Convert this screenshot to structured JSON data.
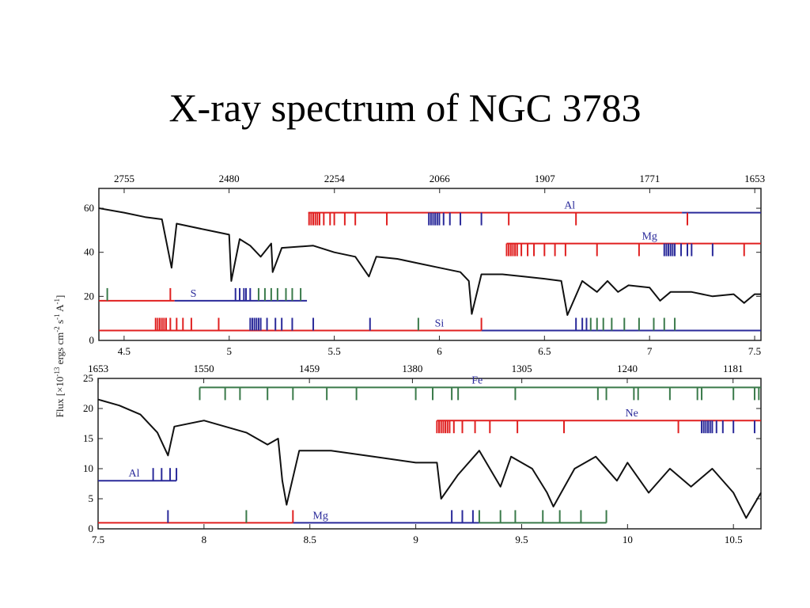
{
  "title": "X-ray spectrum of NGC 3783",
  "y_label": [
    "Flux [×10",
    "-13",
    " ergs cm",
    "-2",
    " s",
    "-1",
    " A",
    "-1",
    "]"
  ],
  "chart_data": [
    {
      "type": "line",
      "xlim": [
        4.38,
        7.53
      ],
      "xticks": [
        4.5,
        5,
        5.5,
        6,
        6.5,
        7,
        7.5
      ],
      "x2_scale": "reciprocal",
      "x2ticks": [
        2755,
        2480,
        2254,
        2066,
        1907,
        1771,
        1653
      ],
      "ylim": [
        0,
        69
      ],
      "yticks": [
        0,
        20,
        40,
        60
      ],
      "series": [
        {
          "color": "#111111",
          "x": [
            4.38,
            4.5,
            4.6,
            4.68,
            4.726,
            4.75,
            4.9,
            5.0,
            5.01,
            5.05,
            5.1,
            5.15,
            5.2,
            5.207,
            5.25,
            5.4,
            5.5,
            5.6,
            5.665,
            5.7,
            5.8,
            5.9,
            6.0,
            6.1,
            6.14,
            6.154,
            6.2,
            6.3,
            6.4,
            6.5,
            6.58,
            6.609,
            6.68,
            6.75,
            6.8,
            6.85,
            6.9,
            7.0,
            7.05,
            7.1,
            7.2,
            7.3,
            7.4,
            7.45,
            7.5,
            7.53
          ],
          "values": [
            60,
            58,
            56,
            55,
            33,
            53,
            50,
            48,
            27,
            46,
            43,
            38,
            44,
            31,
            42,
            43,
            40,
            38,
            29,
            38,
            37,
            35,
            33,
            31,
            27,
            12,
            30,
            30,
            29,
            28,
            27,
            11.5,
            27,
            22,
            27,
            22,
            25,
            24,
            18,
            22,
            22,
            20,
            21,
            17,
            21,
            21
          ]
        }
      ],
      "ions": [
        {
          "name": "Al",
          "level": 58,
          "tick_direction": "down",
          "segments": [
            {
              "color": "#e02020",
              "range": [
                5.376,
                7.154
              ]
            },
            {
              "color": "#2a2a9a",
              "range": [
                7.154,
                7.53
              ]
            }
          ],
          "ticks": [
            {
              "color": "#e02020",
              "x": [
                5.38,
                5.39,
                5.4,
                5.41,
                5.42,
                5.43,
                5.45,
                5.48,
                5.5,
                5.55,
                5.6,
                5.75,
                6.33,
                6.65,
                7.18
              ]
            },
            {
              "color": "#2a2a9a",
              "x": [
                5.95,
                5.96,
                5.97,
                5.98,
                5.99,
                6.0,
                6.02,
                6.05,
                6.1,
                6.2
              ]
            }
          ]
        },
        {
          "name": "Mg",
          "level": 44,
          "tick_direction": "down",
          "segments": [
            {
              "color": "#e02020",
              "range": [
                6.32,
                7.53
              ]
            }
          ],
          "ticks": [
            {
              "color": "#e02020",
              "x": [
                6.32,
                6.33,
                6.34,
                6.35,
                6.36,
                6.37,
                6.39,
                6.42,
                6.45,
                6.5,
                6.55,
                6.6,
                6.75,
                6.95,
                7.45
              ]
            },
            {
              "color": "#2a2a9a",
              "x": [
                7.07,
                7.08,
                7.09,
                7.1,
                7.11,
                7.12,
                7.15,
                7.18,
                7.2,
                7.3
              ]
            }
          ]
        },
        {
          "name": "S",
          "level": 18,
          "tick_direction": "up",
          "segments": [
            {
              "color": "#e02020",
              "range": [
                4.38,
                4.74
              ]
            },
            {
              "color": "#2a2a9a",
              "range": [
                4.74,
                5.37
              ]
            }
          ],
          "ticks": [
            {
              "color": "#3a7a4a",
              "x": [
                4.42,
                5.14,
                5.17,
                5.2,
                5.23,
                5.27,
                5.3,
                5.34
              ]
            },
            {
              "color": "#e02020",
              "x": [
                4.72
              ]
            },
            {
              "color": "#2a2a9a",
              "x": [
                5.03,
                5.05,
                5.07,
                5.08,
                5.1
              ]
            }
          ]
        },
        {
          "name": "Si",
          "level": 4.5,
          "tick_direction": "up",
          "segments": [
            {
              "color": "#e02020",
              "range": [
                4.38,
                6.2
              ]
            },
            {
              "color": "#2a2a9a",
              "range": [
                6.2,
                7.53
              ]
            }
          ],
          "ticks": [
            {
              "color": "#e02020",
              "x": [
                4.65,
                4.66,
                4.67,
                4.68,
                4.69,
                4.7,
                4.72,
                4.75,
                4.78,
                4.82,
                4.95,
                6.2
              ]
            },
            {
              "color": "#2a2a9a",
              "x": [
                5.1,
                5.11,
                5.12,
                5.13,
                5.14,
                5.15,
                5.18,
                5.22,
                5.25,
                5.3,
                5.4,
                5.67,
                6.65,
                6.68,
                6.7
              ]
            },
            {
              "color": "#3a7a4a",
              "x": [
                5.9,
                6.72,
                6.75,
                6.78,
                6.82,
                6.88,
                6.95,
                7.02,
                7.07,
                7.12
              ]
            }
          ]
        }
      ]
    },
    {
      "type": "line",
      "xlim": [
        7.5,
        10.63
      ],
      "xticks": [
        7.5,
        8,
        8.5,
        9,
        9.5,
        10,
        10.5
      ],
      "x2_scale": "reciprocal",
      "x2ticks": [
        1653,
        1550,
        1459,
        1380,
        1305,
        1240,
        1181
      ],
      "ylim": [
        0,
        25
      ],
      "yticks": [
        0,
        5,
        10,
        15,
        20,
        25
      ],
      "series": [
        {
          "color": "#111111",
          "x": [
            7.5,
            7.6,
            7.7,
            7.78,
            7.83,
            7.86,
            8.0,
            8.2,
            8.3,
            8.35,
            8.37,
            8.39,
            8.45,
            8.6,
            8.8,
            9.0,
            9.1,
            9.12,
            9.2,
            9.3,
            9.4,
            9.45,
            9.55,
            9.62,
            9.65,
            9.75,
            9.85,
            9.95,
            10.0,
            10.1,
            10.2,
            10.3,
            10.4,
            10.5,
            10.56,
            10.63
          ],
          "values": [
            21.5,
            20.5,
            19,
            16,
            12.2,
            17,
            18,
            16,
            14,
            15,
            8,
            4,
            13,
            13,
            12,
            11,
            11,
            5,
            9,
            13,
            7,
            12,
            10,
            6,
            3.7,
            10,
            12,
            8,
            11,
            6,
            10,
            7,
            10,
            6,
            1.8,
            6
          ]
        }
      ],
      "ions": [
        {
          "name": "Fe",
          "level": 23.5,
          "tick_direction": "down",
          "segments": [
            {
              "color": "#3a7a4a",
              "range": [
                7.98,
                10.63
              ]
            }
          ],
          "ticks": [
            {
              "color": "#3a7a4a",
              "x": [
                7.98,
                8.1,
                8.17,
                8.3,
                8.42,
                8.58,
                8.72,
                9.0,
                9.08,
                9.17,
                9.2,
                9.47,
                9.86,
                9.9,
                10.03,
                10.05,
                10.2,
                10.33,
                10.35,
                10.5,
                10.6,
                10.62
              ]
            }
          ]
        },
        {
          "name": "Ne",
          "level": 18,
          "tick_direction": "down",
          "segments": [
            {
              "color": "#e02020",
              "range": [
                9.1,
                10.63
              ]
            }
          ],
          "ticks": [
            {
              "color": "#e02020",
              "x": [
                9.1,
                9.11,
                9.12,
                9.13,
                9.14,
                9.15,
                9.16,
                9.18,
                9.22,
                9.28,
                9.35,
                9.48,
                9.7,
                10.24
              ]
            },
            {
              "color": "#2a2a9a",
              "x": [
                10.35,
                10.36,
                10.37,
                10.38,
                10.39,
                10.4,
                10.42,
                10.45,
                10.5,
                10.6
              ]
            }
          ]
        },
        {
          "name": "Al",
          "level": 8,
          "tick_direction": "up",
          "segments": [
            {
              "color": "#2a2a9a",
              "range": [
                7.5,
                7.87
              ]
            }
          ],
          "ticks": [
            {
              "color": "#2a2a9a",
              "x": [
                7.76,
                7.8,
                7.84,
                7.87
              ]
            }
          ]
        },
        {
          "name": "Mg",
          "level": 1,
          "tick_direction": "up",
          "segments": [
            {
              "color": "#e02020",
              "range": [
                7.5,
                8.42
              ]
            },
            {
              "color": "#2a2a9a",
              "range": [
                8.42,
                9.3
              ]
            },
            {
              "color": "#3a7a4a",
              "range": [
                9.3,
                9.9
              ]
            }
          ],
          "ticks": [
            {
              "color": "#2a2a9a",
              "x": [
                7.83,
                9.17,
                9.22,
                9.27
              ]
            },
            {
              "color": "#3a7a4a",
              "x": [
                8.2,
                9.3,
                9.4,
                9.47,
                9.6,
                9.68,
                9.78,
                9.9
              ]
            },
            {
              "color": "#e02020",
              "x": [
                8.42
              ]
            }
          ]
        }
      ]
    }
  ]
}
